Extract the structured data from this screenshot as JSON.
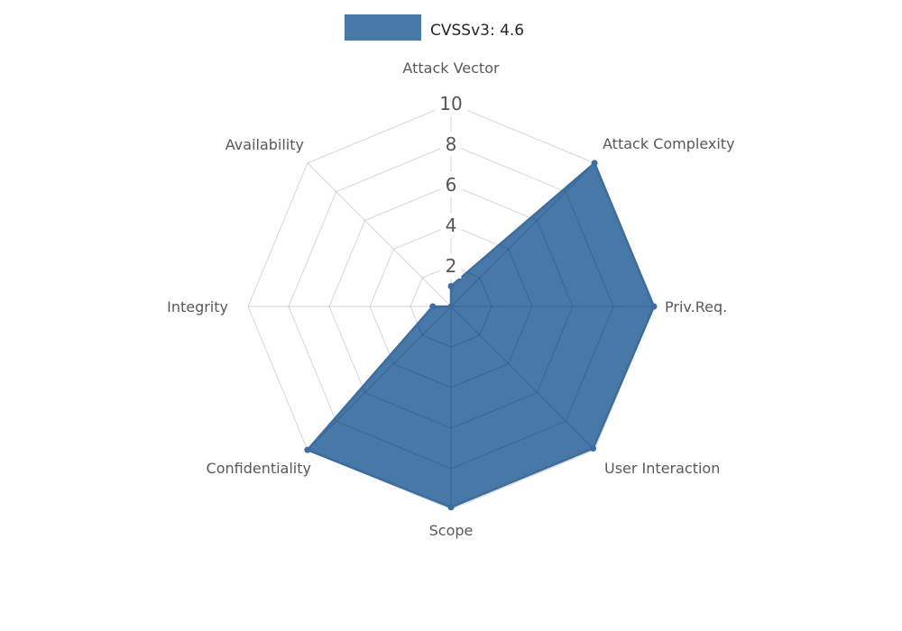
{
  "figure": {
    "background": "#ffffff"
  },
  "chart_data": {
    "type": "radar",
    "title": "CVSSv3: 4.6",
    "legend": {
      "label": "CVSSv3: 4.6",
      "position": "top",
      "swatch_color": "#4878a8"
    },
    "categories": [
      "Attack Vector",
      "Attack Complexity",
      "Priv.Req.",
      "User Interaction",
      "Scope",
      "Confidentiality",
      "Integrity",
      "Availability"
    ],
    "series": [
      {
        "name": "CVSSv3: 4.6",
        "values": [
          1,
          10,
          10,
          9.9,
          9.9,
          10,
          0.9,
          0
        ]
      }
    ],
    "rlim": [
      0,
      10
    ],
    "rticks": [
      2,
      4,
      6,
      8,
      10
    ],
    "grid": true,
    "start_angle_deg": 90,
    "direction": "clockwise",
    "colors": {
      "fill": "#4878a8",
      "stroke": "#3d6d9e",
      "grid": "rgba(0,0,0,0.16)",
      "tick_label": "#555555",
      "axis_label": "#595959",
      "title": "#262626",
      "background": "#ffffff"
    }
  }
}
